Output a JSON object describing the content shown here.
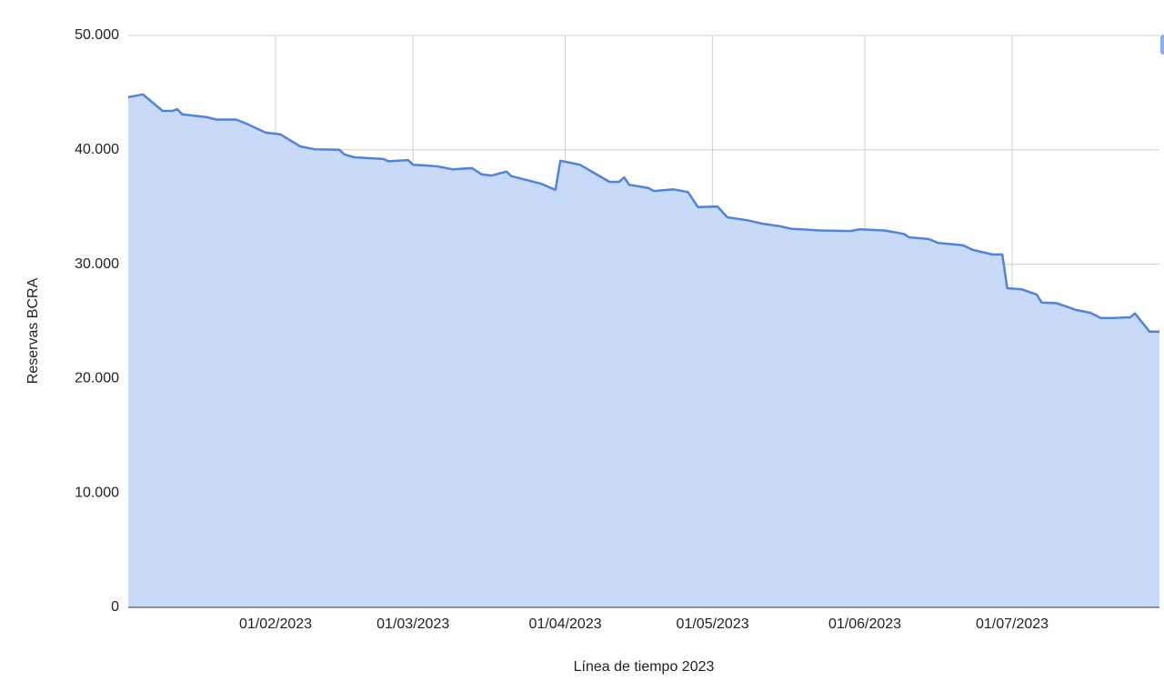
{
  "chart_data": {
    "type": "area",
    "x_label": "Línea de tiempo 2023",
    "y_label": "Reservas BCRA",
    "xlim": [
      "2023-01-02",
      "2023-07-31"
    ],
    "xticks": [
      {
        "value": "2023-02-01",
        "label": "01/02/2023"
      },
      {
        "value": "2023-03-01",
        "label": "01/03/2023"
      },
      {
        "value": "2023-04-01",
        "label": "01/04/2023"
      },
      {
        "value": "2023-05-01",
        "label": "01/05/2023"
      },
      {
        "value": "2023-06-01",
        "label": "01/06/2023"
      },
      {
        "value": "2023-07-01",
        "label": "01/07/2023"
      }
    ],
    "ylim": [
      0,
      50000
    ],
    "yticks": [
      0,
      {
        "value": 10000,
        "label": "10.000"
      },
      {
        "value": 20000,
        "label": "20.000"
      },
      {
        "value": 30000,
        "label": "30.000"
      },
      {
        "value": 40000,
        "label": "40.000"
      },
      {
        "value": 50000,
        "label": "50.000"
      }
    ],
    "grid": true,
    "series": [
      {
        "name": "Reservas BCRA",
        "color": "#5083dc",
        "fill": "#c9daf8",
        "x": [
          "2023-01-02",
          "2023-01-05",
          "2023-01-09",
          "2023-01-11",
          "2023-01-12",
          "2023-01-13",
          "2023-01-18",
          "2023-01-20",
          "2023-01-24",
          "2023-01-26",
          "2023-01-30",
          "2023-02-02",
          "2023-02-06",
          "2023-02-09",
          "2023-02-14",
          "2023-02-15",
          "2023-02-17",
          "2023-02-23",
          "2023-02-24",
          "2023-02-28",
          "2023-03-01",
          "2023-03-03",
          "2023-03-06",
          "2023-03-09",
          "2023-03-13",
          "2023-03-15",
          "2023-03-17",
          "2023-03-20",
          "2023-03-21",
          "2023-03-27",
          "2023-03-30",
          "2023-03-31",
          "2023-04-04",
          "2023-04-10",
          "2023-04-12",
          "2023-04-13",
          "2023-04-14",
          "2023-04-18",
          "2023-04-19",
          "2023-04-23",
          "2023-04-26",
          "2023-04-28",
          "2023-05-02",
          "2023-05-04",
          "2023-05-08",
          "2023-05-11",
          "2023-05-15",
          "2023-05-17",
          "2023-05-23",
          "2023-05-29",
          "2023-05-31",
          "2023-06-05",
          "2023-06-09",
          "2023-06-10",
          "2023-06-14",
          "2023-06-16",
          "2023-06-21",
          "2023-06-23",
          "2023-06-27",
          "2023-06-29",
          "2023-06-30",
          "2023-07-03",
          "2023-07-06",
          "2023-07-07",
          "2023-07-10",
          "2023-07-12",
          "2023-07-14",
          "2023-07-17",
          "2023-07-19",
          "2023-07-22",
          "2023-07-24",
          "2023-07-25",
          "2023-07-26",
          "2023-07-29",
          "2023-07-31"
        ],
        "values": [
          44600,
          44850,
          43400,
          43400,
          43550,
          43100,
          42850,
          42650,
          42650,
          42300,
          41500,
          41350,
          40300,
          40050,
          40000,
          39600,
          39350,
          39200,
          39000,
          39100,
          38700,
          38650,
          38550,
          38300,
          38400,
          37850,
          37750,
          38100,
          37700,
          37050,
          36500,
          39050,
          38700,
          37200,
          37200,
          37600,
          36950,
          36650,
          36400,
          36550,
          36300,
          35000,
          35050,
          34100,
          33850,
          33550,
          33300,
          33100,
          32950,
          32900,
          33050,
          32950,
          32650,
          32350,
          32200,
          31850,
          31650,
          31250,
          30850,
          30850,
          27900,
          27800,
          27350,
          26650,
          26600,
          26300,
          26000,
          25750,
          25300,
          25300,
          25350,
          25350,
          25700,
          24100,
          24100
        ]
      }
    ]
  }
}
